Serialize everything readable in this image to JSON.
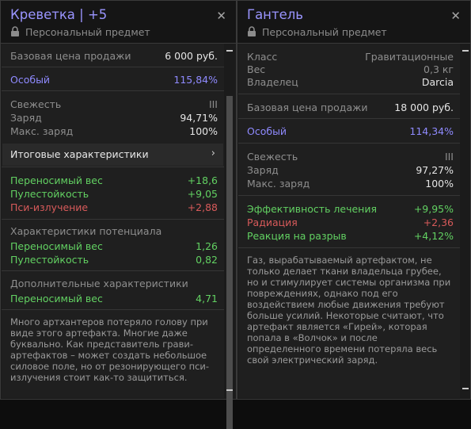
{
  "panel1": {
    "title": "Креветка | +5",
    "subtitle": "Персональный предмет",
    "base_price": {
      "label": "Базовая цена продажи",
      "value": "6 000 руб."
    },
    "rarity": {
      "label": "Особый",
      "value": "115,84%"
    },
    "freshness": {
      "label": "Свежесть",
      "value": "III"
    },
    "charge": {
      "label": "Заряд",
      "value": "94,71%"
    },
    "max_charge": {
      "label": "Макс. заряд",
      "value": "100%"
    },
    "summary_label": "Итоговые характеристики",
    "stats": [
      {
        "label": "Переносимый вес",
        "value": "+18,6"
      },
      {
        "label": "Пулестойкость",
        "value": "+9,05"
      },
      {
        "label": "Пси-излучение",
        "value": "+2,88"
      }
    ],
    "potential_header": "Характеристики потенциала",
    "potential": [
      {
        "label": "Переносимый вес",
        "value": "1,26"
      },
      {
        "label": "Пулестойкость",
        "value": "0,82"
      }
    ],
    "extra_header": "Дополнительные характеристики",
    "extra": [
      {
        "label": "Переносимый вес",
        "value": "4,71"
      }
    ],
    "description": "Много артхантеров потеряло голову при виде этого артефакта. Многие даже буквально. Как представитель грави-артефактов – может создать небольшое силовое поле, но от резонирующего пси-излучения стоит как-то защититься."
  },
  "panel2": {
    "title": "Гантель",
    "subtitle": "Персональный предмет",
    "class": {
      "label": "Класс",
      "value": "Гравитационные"
    },
    "weight": {
      "label": "Вес",
      "value": "0,3 кг"
    },
    "owner": {
      "label": "Владелец",
      "value": "Darcia"
    },
    "base_price": {
      "label": "Базовая цена продажи",
      "value": "18 000 руб."
    },
    "rarity": {
      "label": "Особый",
      "value": "114,34%"
    },
    "freshness": {
      "label": "Свежесть",
      "value": "III"
    },
    "charge": {
      "label": "Заряд",
      "value": "97,27%"
    },
    "max_charge": {
      "label": "Макс. заряд",
      "value": "100%"
    },
    "stats": [
      {
        "label": "Эффективность лечения",
        "value": "+9,95%"
      },
      {
        "label": "Радиация",
        "value": "+2,36"
      },
      {
        "label": "Реакция на разрыв",
        "value": "+4,12%"
      }
    ],
    "description": "Газ, вырабатываемый артефактом, не только делает ткани владельца грубее, но и стимулирует системы организма при повреждениях, однако под его воздействием любые движения требуют больше усилий. Некоторые считают, что артефакт является «Гирей», которая попала в «Волчок» и после определенного времени потеряла весь свой электрический заряд."
  },
  "colors": {
    "accent": "#9a95ff",
    "positive": "#62d162",
    "negative": "#d75a5a"
  },
  "icons": {
    "close": "close-icon",
    "lock": "lock-icon",
    "chevron": "chevron-right-icon"
  }
}
